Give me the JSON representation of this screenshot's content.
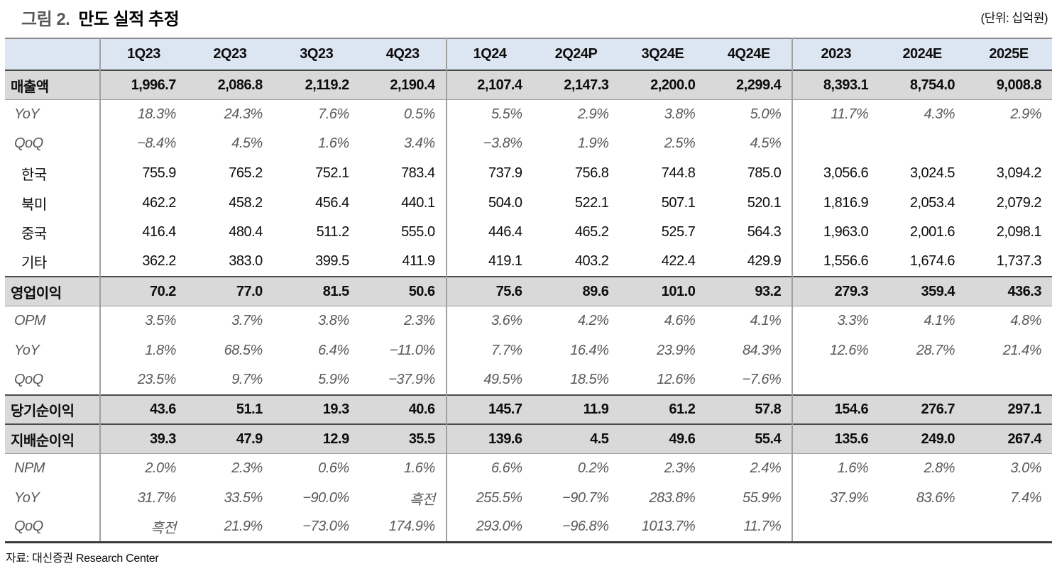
{
  "title": {
    "prefix": "그림 2.",
    "text": "만도 실적 추정"
  },
  "unit_note": "(단위: 십억원)",
  "source": "자료: 대신증권 Research Center",
  "colors": {
    "header_bg": "#dce6f2",
    "highlight_row_bg": "#d9d9d9",
    "muted_text": "#595959",
    "title_prefix": "#595959"
  },
  "table": {
    "columns": [
      "1Q23",
      "2Q23",
      "3Q23",
      "4Q23",
      "1Q24",
      "2Q24P",
      "3Q24E",
      "4Q24E",
      "2023",
      "2024E",
      "2025E"
    ],
    "group_separators_after": [
      3,
      7
    ],
    "rows": [
      {
        "label": "매출액",
        "style": "bold",
        "cells": [
          "1,996.7",
          "2,086.8",
          "2,119.2",
          "2,190.4",
          "2,107.4",
          "2,147.3",
          "2,200.0",
          "2,299.4",
          "8,393.1",
          "8,754.0",
          "9,008.8"
        ]
      },
      {
        "label": "YoY",
        "style": "italic",
        "cells": [
          "18.3%",
          "24.3%",
          "7.6%",
          "0.5%",
          "5.5%",
          "2.9%",
          "3.8%",
          "5.0%",
          "11.7%",
          "4.3%",
          "2.9%"
        ]
      },
      {
        "label": "QoQ",
        "style": "italic",
        "cells": [
          "−8.4%",
          "4.5%",
          "1.6%",
          "3.4%",
          "−3.8%",
          "1.9%",
          "2.5%",
          "4.5%",
          "",
          "",
          ""
        ]
      },
      {
        "label": "한국",
        "style": "plain",
        "cells": [
          "755.9",
          "765.2",
          "752.1",
          "783.4",
          "737.9",
          "756.8",
          "744.8",
          "785.0",
          "3,056.6",
          "3,024.5",
          "3,094.2"
        ]
      },
      {
        "label": "북미",
        "style": "plain",
        "cells": [
          "462.2",
          "458.2",
          "456.4",
          "440.1",
          "504.0",
          "522.1",
          "507.1",
          "520.1",
          "1,816.9",
          "2,053.4",
          "2,079.2"
        ]
      },
      {
        "label": "중국",
        "style": "plain",
        "cells": [
          "416.4",
          "480.4",
          "511.2",
          "555.0",
          "446.4",
          "465.2",
          "525.7",
          "564.3",
          "1,963.0",
          "2,001.6",
          "2,098.1"
        ]
      },
      {
        "label": "기타",
        "style": "plain",
        "cells": [
          "362.2",
          "383.0",
          "399.5",
          "411.9",
          "419.1",
          "403.2",
          "422.4",
          "429.9",
          "1,556.6",
          "1,674.6",
          "1,737.3"
        ]
      },
      {
        "label": "영업이익",
        "style": "bold",
        "cells": [
          "70.2",
          "77.0",
          "81.5",
          "50.6",
          "75.6",
          "89.6",
          "101.0",
          "93.2",
          "279.3",
          "359.4",
          "436.3"
        ]
      },
      {
        "label": "OPM",
        "style": "italic",
        "cells": [
          "3.5%",
          "3.7%",
          "3.8%",
          "2.3%",
          "3.6%",
          "4.2%",
          "4.6%",
          "4.1%",
          "3.3%",
          "4.1%",
          "4.8%"
        ]
      },
      {
        "label": "YoY",
        "style": "italic",
        "cells": [
          "1.8%",
          "68.5%",
          "6.4%",
          "−11.0%",
          "7.7%",
          "16.4%",
          "23.9%",
          "84.3%",
          "12.6%",
          "28.7%",
          "21.4%"
        ]
      },
      {
        "label": "QoQ",
        "style": "italic",
        "cells": [
          "23.5%",
          "9.7%",
          "5.9%",
          "−37.9%",
          "49.5%",
          "18.5%",
          "12.6%",
          "−7.6%",
          "",
          "",
          ""
        ]
      },
      {
        "label": "당기순이익",
        "style": "bold",
        "cells": [
          "43.6",
          "51.1",
          "19.3",
          "40.6",
          "145.7",
          "11.9",
          "61.2",
          "57.8",
          "154.6",
          "276.7",
          "297.1"
        ]
      },
      {
        "label": "지배순이익",
        "style": "bold",
        "cells": [
          "39.3",
          "47.9",
          "12.9",
          "35.5",
          "139.6",
          "4.5",
          "49.6",
          "55.4",
          "135.6",
          "249.0",
          "267.4"
        ]
      },
      {
        "label": "NPM",
        "style": "italic",
        "cells": [
          "2.0%",
          "2.3%",
          "0.6%",
          "1.6%",
          "6.6%",
          "0.2%",
          "2.3%",
          "2.4%",
          "1.6%",
          "2.8%",
          "3.0%"
        ]
      },
      {
        "label": "YoY",
        "style": "italic",
        "cells": [
          "31.7%",
          "33.5%",
          "−90.0%",
          "흑전",
          "255.5%",
          "−90.7%",
          "283.8%",
          "55.9%",
          "37.9%",
          "83.6%",
          "7.4%"
        ]
      },
      {
        "label": "QoQ",
        "style": "italic",
        "cells": [
          "흑전",
          "21.9%",
          "−73.0%",
          "174.9%",
          "293.0%",
          "−96.8%",
          "1013.7%",
          "11.7%",
          "",
          "",
          ""
        ]
      }
    ]
  }
}
